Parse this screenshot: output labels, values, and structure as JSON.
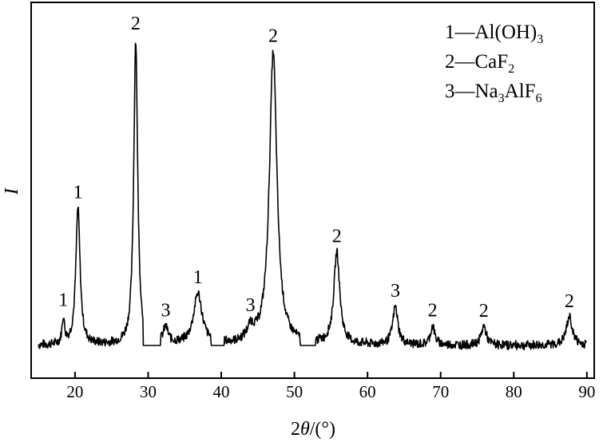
{
  "chart_data": {
    "type": "line",
    "title": "",
    "xlabel": "2θ/(°)",
    "xlabel_parts": {
      "two": "2",
      "theta": "θ",
      "unit": "/(°)"
    },
    "ylabel": "I",
    "xlim": [
      14,
      91
    ],
    "ylim": [
      0,
      100
    ],
    "x_ticks": [
      20,
      30,
      40,
      50,
      60,
      70,
      80,
      90
    ],
    "y_ticks_shown": false,
    "grid": false,
    "legend_position": "top-right",
    "legend": [
      {
        "number": "1",
        "dash": "—",
        "formula": [
          {
            "t": "Al(OH)"
          },
          {
            "t": "3",
            "sub": true
          }
        ]
      },
      {
        "number": "2",
        "dash": "—",
        "formula": [
          {
            "t": "CaF"
          },
          {
            "t": "2",
            "sub": true
          }
        ]
      },
      {
        "number": "3",
        "dash": "—",
        "formula": [
          {
            "t": "Na"
          },
          {
            "t": "3",
            "sub": true
          },
          {
            "t": "AlF"
          },
          {
            "t": "6",
            "sub": true
          }
        ]
      }
    ],
    "baseline": 5,
    "noise": 1.2,
    "x_start": 15.0,
    "x_end": 89.9,
    "gaps": [
      [
        29.3,
        31.7
      ],
      [
        38.6,
        40.4
      ],
      [
        50.8,
        52.9
      ]
    ],
    "peaks": [
      {
        "x": 18.4,
        "height": 8,
        "width": 0.2,
        "label": "1"
      },
      {
        "x": 20.4,
        "height": 43,
        "width": 0.35,
        "label": "1"
      },
      {
        "x": 28.3,
        "height": 96,
        "width": 0.32,
        "label": "2"
      },
      {
        "x": 32.4,
        "height": 5,
        "width": 0.4,
        "label": "3"
      },
      {
        "x": 36.8,
        "height": 16,
        "width": 0.7,
        "label": "1"
      },
      {
        "x": 44.0,
        "height": 4,
        "width": 0.6,
        "label": "3"
      },
      {
        "x": 47.1,
        "height": 92,
        "width": 0.62,
        "label": "2"
      },
      {
        "x": 55.8,
        "height": 29,
        "width": 0.48,
        "label": "2"
      },
      {
        "x": 63.8,
        "height": 12,
        "width": 0.42,
        "label": "3"
      },
      {
        "x": 68.9,
        "height": 6,
        "width": 0.35,
        "label": "2"
      },
      {
        "x": 75.9,
        "height": 6,
        "width": 0.4,
        "label": "2"
      },
      {
        "x": 87.6,
        "height": 9,
        "width": 0.48,
        "label": "2"
      }
    ]
  }
}
